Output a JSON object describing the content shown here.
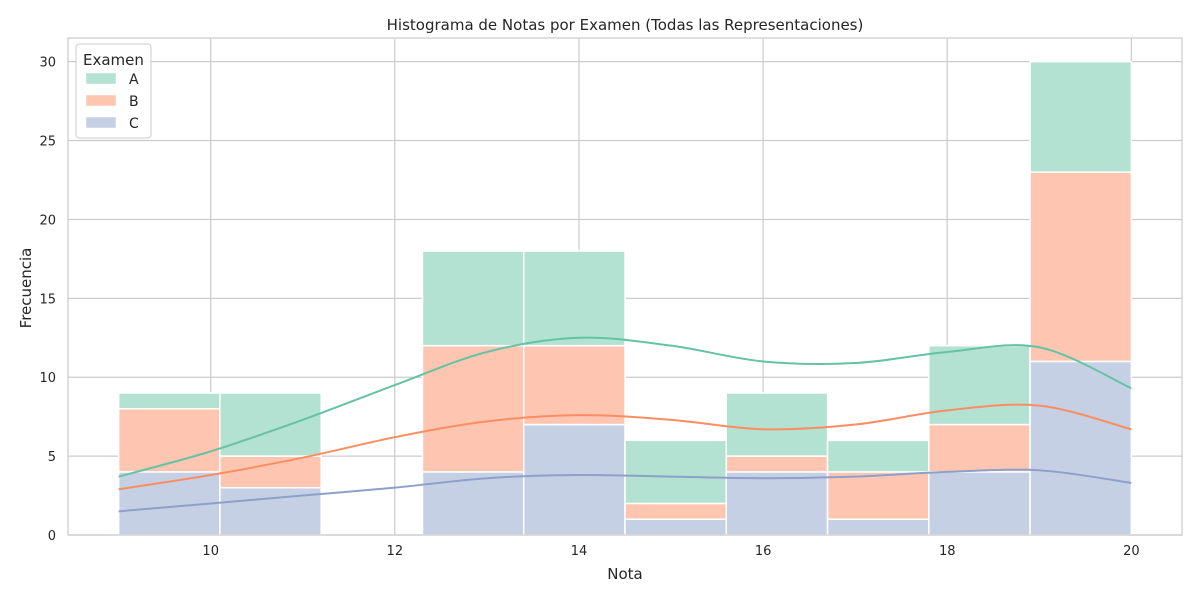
{
  "chart_data": {
    "type": "bar",
    "stacked": true,
    "title": "Histograma de Notas por Examen (Todas las Representaciones)",
    "xlabel": "Nota",
    "ylabel": "Frecuencia",
    "xlim": [
      8.45,
      20.55
    ],
    "ylim": [
      0,
      31.5
    ],
    "xticks": [
      10,
      12,
      14,
      16,
      18,
      20
    ],
    "yticks": [
      0,
      5,
      10,
      15,
      20,
      25,
      30
    ],
    "grid": true,
    "bin_edges": [
      9.0,
      10.1,
      11.2,
      12.3,
      13.4,
      14.5,
      15.6,
      16.7,
      17.8,
      18.9,
      20.0
    ],
    "legend": {
      "title": "Examen",
      "placement": "top-left"
    },
    "series": [
      {
        "name": "C",
        "color": "#8da0cb",
        "values": [
          4,
          3,
          0,
          4,
          7,
          1,
          4,
          1,
          4,
          11
        ]
      },
      {
        "name": "B",
        "color": "#fc8d62",
        "values": [
          4,
          2,
          0,
          8,
          5,
          1,
          1,
          3,
          3,
          12
        ]
      },
      {
        "name": "A",
        "color": "#66c2a5",
        "values": [
          1,
          4,
          0,
          6,
          6,
          4,
          4,
          2,
          5,
          7
        ]
      }
    ],
    "kde": [
      {
        "name": "A",
        "x": [
          9,
          10,
          11,
          12,
          13,
          14,
          15,
          16,
          17,
          18,
          19,
          20
        ],
        "y": [
          3.7,
          5.3,
          7.3,
          9.5,
          11.6,
          12.5,
          12.0,
          11.0,
          10.9,
          11.6,
          11.9,
          9.3
        ]
      },
      {
        "name": "B",
        "x": [
          9,
          10,
          11,
          12,
          13,
          14,
          15,
          16,
          17,
          18,
          19,
          20
        ],
        "y": [
          2.9,
          3.8,
          4.9,
          6.2,
          7.2,
          7.6,
          7.3,
          6.7,
          7.0,
          7.9,
          8.2,
          6.7
        ]
      },
      {
        "name": "C",
        "x": [
          9,
          10,
          11,
          12,
          13,
          14,
          15,
          16,
          17,
          18,
          19,
          20
        ],
        "y": [
          1.5,
          2.0,
          2.5,
          3.0,
          3.6,
          3.8,
          3.7,
          3.6,
          3.7,
          4.0,
          4.1,
          3.3
        ]
      }
    ]
  }
}
